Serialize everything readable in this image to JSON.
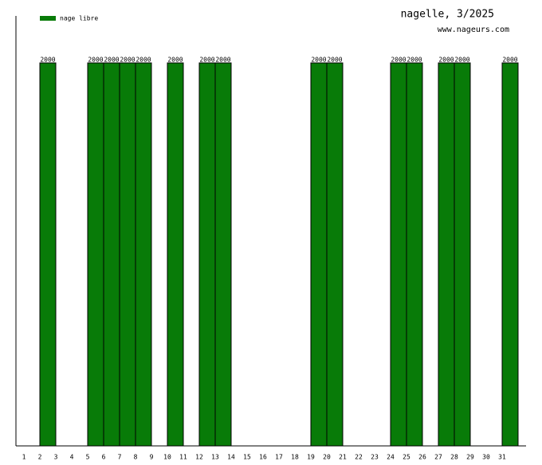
{
  "chart_data": {
    "type": "bar",
    "title": "nagelle, 3/2025",
    "subtitle": "www.nageurs.com",
    "categories": [
      "1",
      "2",
      "3",
      "4",
      "5",
      "6",
      "7",
      "8",
      "9",
      "10",
      "11",
      "12",
      "13",
      "14",
      "15",
      "16",
      "17",
      "18",
      "19",
      "20",
      "21",
      "22",
      "23",
      "24",
      "25",
      "26",
      "27",
      "28",
      "29",
      "30",
      "31"
    ],
    "series": [
      {
        "name": "nage libre",
        "color": "#087b08",
        "values": [
          null,
          2000,
          null,
          null,
          2000,
          2000,
          2000,
          2000,
          null,
          2000,
          null,
          2000,
          2000,
          null,
          null,
          null,
          null,
          null,
          2000,
          2000,
          null,
          null,
          null,
          2000,
          2000,
          null,
          2000,
          2000,
          null,
          null,
          2000
        ]
      }
    ],
    "ylim": [
      0,
      2000
    ],
    "legend": "top-left"
  }
}
